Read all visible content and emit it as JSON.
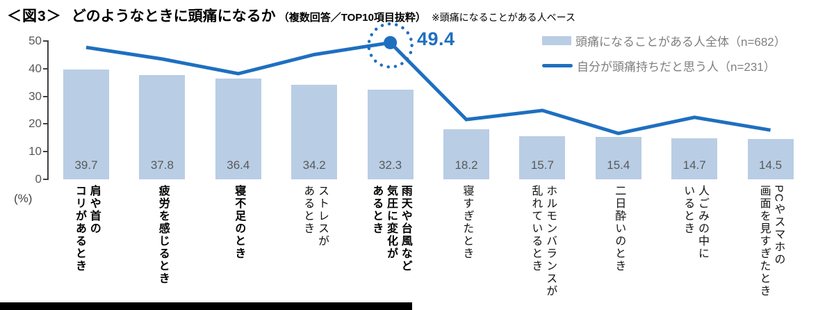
{
  "title": {
    "tag": "＜図3＞",
    "main": "どのようなときに頭痛になるか",
    "sub": "（複数回答／TOP10項目抜粋）",
    "note": "※頭痛になることがある人ベース"
  },
  "legend": [
    {
      "swatch": "bar",
      "label": "頭痛になることがある人全体（n=682）"
    },
    {
      "swatch": "line",
      "label": "自分が頭痛持ちだと思う人（n=231）"
    }
  ],
  "axis": {
    "unit": "(%)",
    "ticks": [
      0,
      10,
      20,
      30,
      40,
      50
    ]
  },
  "colors": {
    "bar": "#b9cde5",
    "line": "#1e6fc0",
    "annotation": "#1e6fc0",
    "value_label": "#595959",
    "axis_text": "#595959",
    "axis_line": "#404040"
  },
  "chart_data": {
    "type": "bar+line",
    "title": "どのようなときに頭痛になるか（複数回答／TOP10項目抜粋）",
    "note": "※頭痛になることがある人ベース",
    "ylabel": "(%)",
    "ylim": [
      0,
      50
    ],
    "grid": false,
    "legend_position": "top-right",
    "categories": [
      "肩や首のコリがあるとき",
      "疲労を感じるとき",
      "寝不足のとき",
      "ストレスがあるとき",
      "雨天や台風など気圧に変化があるとき",
      "寝すぎたとき",
      "ホルモンバランスが乱れているとき",
      "二日酔いのとき",
      "人ごみの中にいるとき",
      "PCやスマホの画面を見すぎたとき"
    ],
    "category_lines": [
      [
        "肩や首の",
        "コリがあるとき"
      ],
      [
        "疲労を感じるとき"
      ],
      [
        "寝不足のとき"
      ],
      [
        "ストレスが",
        "あるとき"
      ],
      [
        "雨天や台風など",
        "気圧に変化が",
        "あるとき"
      ],
      [
        "寝すぎたとき"
      ],
      [
        "ホルモンバランスが",
        "乱れているとき"
      ],
      [
        "二日酔いのとき"
      ],
      [
        "人ごみの中に",
        "いるとき"
      ],
      [
        "PCやスマホの",
        "画面を見すぎたとき"
      ]
    ],
    "category_bold": [
      true,
      true,
      true,
      false,
      true,
      false,
      false,
      false,
      false,
      false
    ],
    "series": [
      {
        "name": "頭痛になることがある人全体（n=682）",
        "type": "bar",
        "values": [
          39.7,
          37.8,
          36.4,
          34.2,
          32.3,
          18.2,
          15.7,
          15.4,
          14.7,
          14.5
        ],
        "labels": [
          "39.7",
          "37.8",
          "36.4",
          "34.2",
          "32.3",
          "18.2",
          "15.7",
          "15.4",
          "14.7",
          "14.5"
        ]
      },
      {
        "name": "自分が頭痛持ちだと思う人（n=231）",
        "type": "line",
        "values": [
          47.7,
          43.5,
          38.2,
          45.1,
          49.4,
          21.6,
          24.9,
          16.6,
          22.4,
          17.8
        ]
      }
    ],
    "annotation": {
      "series": 1,
      "index": 4,
      "value": 49.4,
      "label": "49.4",
      "marker": "dot-with-dotted-circle"
    }
  }
}
